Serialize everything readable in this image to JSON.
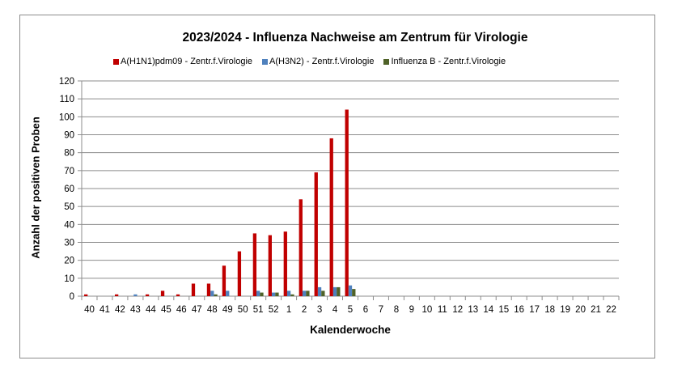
{
  "chart_data": {
    "type": "bar",
    "title": "2023/2024 - Influenza Nachweise am Zentrum für Virologie",
    "xlabel": "Kalenderwoche",
    "ylabel": "Anzahl der positiven Proben",
    "ylim": [
      0,
      120
    ],
    "yticks": [
      0,
      10,
      20,
      30,
      40,
      50,
      60,
      70,
      80,
      90,
      100,
      110,
      120
    ],
    "grid": true,
    "legend_position": "top",
    "categories": [
      "40",
      "41",
      "42",
      "43",
      "44",
      "45",
      "46",
      "47",
      "48",
      "49",
      "50",
      "51",
      "52",
      "1",
      "2",
      "3",
      "4",
      "5",
      "6",
      "7",
      "8",
      "9",
      "10",
      "11",
      "12",
      "13",
      "14",
      "15",
      "16",
      "17",
      "18",
      "19",
      "20",
      "21",
      "22"
    ],
    "series": [
      {
        "name": "A(H1N1)pdm09 - Zentr.f.Virologie",
        "color": "#c00000",
        "values": [
          1,
          0,
          1,
          0,
          1,
          3,
          1,
          7,
          7,
          17,
          25,
          35,
          34,
          36,
          54,
          69,
          88,
          104,
          0,
          0,
          0,
          0,
          0,
          0,
          0,
          0,
          0,
          0,
          0,
          0,
          0,
          0,
          0,
          0,
          0
        ]
      },
      {
        "name": "A(H3N2)  - Zentr.f.Virologie",
        "color": "#4f81bd",
        "values": [
          0,
          0,
          0,
          1,
          0,
          0,
          0,
          0,
          3,
          3,
          0,
          3,
          2,
          3,
          3,
          5,
          5,
          6,
          0,
          0,
          0,
          0,
          0,
          0,
          0,
          0,
          0,
          0,
          0,
          0,
          0,
          0,
          0,
          0,
          0
        ]
      },
      {
        "name": "Influenza B - Zentr.f.Virologie",
        "color": "#4f6228",
        "values": [
          0,
          0,
          0,
          0,
          0,
          0,
          0,
          0,
          1,
          0,
          0,
          2,
          2,
          1,
          3,
          3,
          5,
          4,
          0,
          0,
          0,
          0,
          0,
          0,
          0,
          0,
          0,
          0,
          0,
          0,
          0,
          0,
          0,
          0,
          0
        ]
      }
    ]
  }
}
